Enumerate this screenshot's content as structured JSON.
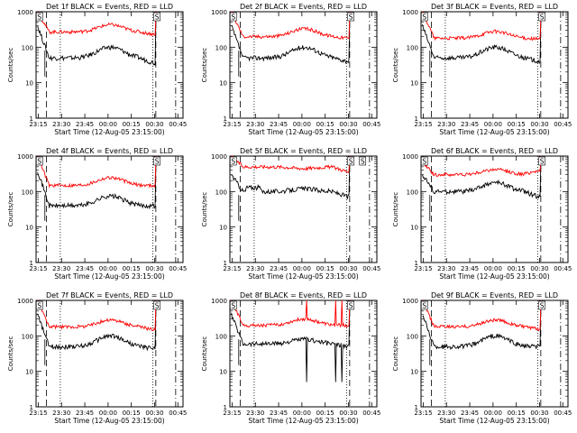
{
  "chart_data": [
    {
      "type": "line",
      "title": "Det 1f BLACK = Events, RED = LLD",
      "det": 1,
      "variant": "a",
      "xlabel": "Start Time (12-Aug-05 23:15:00)",
      "ylabel": "Counts/sec",
      "xticks": [
        "23:15",
        "23:30",
        "23:45",
        "00:00",
        "00:15",
        "00:30",
        "00:45"
      ],
      "yticks": [
        "1",
        "10",
        "100",
        "1000"
      ],
      "ylim": [
        1,
        1000
      ],
      "log_y": true,
      "series": [
        {
          "name": "Events",
          "color": "#000000",
          "level_start": 400,
          "level_mid": 50,
          "bump": 100,
          "level_end": 35
        },
        {
          "name": "LLD",
          "color": "#ff0000",
          "level_start": 1000,
          "level_mid": 270,
          "bump": 430,
          "level_end": 230
        }
      ],
      "flags": [
        "S",
        "S"
      ]
    },
    {
      "type": "line",
      "title": "Det 2f BLACK = Events, RED = LLD",
      "det": 2,
      "variant": "a",
      "xlabel": "Start Time (12-Aug-05 23:15:00)",
      "ylabel": "Counts/sec",
      "xticks": [
        "23:15",
        "23:30",
        "23:45",
        "00:00",
        "00:15",
        "00:30",
        "00:45"
      ],
      "yticks": [
        "1",
        "10",
        "100",
        "1000"
      ],
      "ylim": [
        1,
        1000
      ],
      "log_y": true,
      "series": [
        {
          "name": "Events",
          "color": "#000000",
          "level_start": 400,
          "level_mid": 50,
          "bump": 100,
          "level_end": 40
        },
        {
          "name": "LLD",
          "color": "#ff0000",
          "level_start": 1000,
          "level_mid": 200,
          "bump": 330,
          "level_end": 180
        }
      ],
      "flags": [
        "S",
        "S"
      ]
    },
    {
      "type": "line",
      "title": "Det 3f BLACK = Events, RED = LLD",
      "det": 3,
      "variant": "a",
      "xlabel": "Start Time (12-Aug-05 23:15:00)",
      "ylabel": "Counts/sec",
      "xticks": [
        "23:15",
        "23:30",
        "23:45",
        "00:00",
        "00:15",
        "00:30",
        "00:45"
      ],
      "yticks": [
        "1",
        "10",
        "100",
        "1000"
      ],
      "ylim": [
        1,
        1000
      ],
      "log_y": true,
      "series": [
        {
          "name": "Events",
          "color": "#000000",
          "level_start": 400,
          "level_mid": 50,
          "bump": 100,
          "level_end": 40
        },
        {
          "name": "LLD",
          "color": "#ff0000",
          "level_start": 1000,
          "level_mid": 180,
          "bump": 280,
          "level_end": 170
        }
      ],
      "flags": [
        "S",
        "S"
      ]
    },
    {
      "type": "line",
      "title": "Det 4f BLACK = Events, RED = LLD",
      "det": 4,
      "variant": "a",
      "xlabel": "Start Time (12-Aug-05 23:15:00)",
      "ylabel": "Counts/sec",
      "xticks": [
        "23:15",
        "23:30",
        "23:45",
        "00:00",
        "00:15",
        "00:30",
        "00:45"
      ],
      "yticks": [
        "1",
        "10",
        "100",
        "1000"
      ],
      "ylim": [
        1,
        1000
      ],
      "log_y": true,
      "series": [
        {
          "name": "Events",
          "color": "#000000",
          "level_start": 400,
          "level_mid": 40,
          "bump": 75,
          "level_end": 40
        },
        {
          "name": "LLD",
          "color": "#ff0000",
          "level_start": 1000,
          "level_mid": 150,
          "bump": 250,
          "level_end": 150
        }
      ],
      "flags": [
        "S",
        "S"
      ]
    },
    {
      "type": "line",
      "title": "Det 5f BLACK = Events, RED = LLD",
      "det": 5,
      "variant": "b",
      "xlabel": "Start Time (12-Aug-05 23:15:00)",
      "ylabel": "Counts/sec",
      "xticks": [
        "23:15",
        "23:30",
        "23:45",
        "00:00",
        "00:15",
        "00:30",
        "00:45"
      ],
      "yticks": [
        "1",
        "10",
        "100",
        "1000"
      ],
      "ylim": [
        1,
        1000
      ],
      "log_y": true,
      "series": [
        {
          "name": "Events",
          "color": "#000000",
          "level_start": 300,
          "level_mid": 100,
          "bump": 120,
          "level_end": 70
        },
        {
          "name": "LLD",
          "color": "#ff0000",
          "level_start": 1000,
          "level_mid": 500,
          "bump": 450,
          "level_end": 350
        }
      ],
      "flags": [
        "S",
        "S",
        "S"
      ]
    },
    {
      "type": "line",
      "title": "Det 6f BLACK = Events, RED = LLD",
      "det": 6,
      "variant": "c",
      "xlabel": "Start Time (12-Aug-05 23:15:00)",
      "ylabel": "Counts/sec",
      "xticks": [
        "23:15",
        "23:30",
        "23:45",
        "00:00",
        "00:15",
        "00:30",
        "00:45"
      ],
      "yticks": [
        "1",
        "10",
        "100",
        "1000"
      ],
      "ylim": [
        1,
        1000
      ],
      "log_y": true,
      "series": [
        {
          "name": "Events",
          "color": "#000000",
          "level_start": 300,
          "level_mid": 100,
          "bump": 180,
          "level_end": 70
        },
        {
          "name": "LLD",
          "color": "#ff0000",
          "level_start": 650,
          "level_mid": 300,
          "bump": 420,
          "level_end": 400
        }
      ],
      "flags": [
        "S",
        "S"
      ]
    },
    {
      "type": "line",
      "title": "Det 7f BLACK = Events, RED = LLD",
      "det": 7,
      "variant": "a",
      "xlabel": "Start Time (12-Aug-05 23:15:00)",
      "ylabel": "Counts/sec",
      "xticks": [
        "23:15",
        "23:30",
        "23:45",
        "00:00",
        "00:15",
        "00:30",
        "00:45"
      ],
      "yticks": [
        "1",
        "10",
        "100",
        "1000"
      ],
      "ylim": [
        1,
        1000
      ],
      "log_y": true,
      "series": [
        {
          "name": "Events",
          "color": "#000000",
          "level_start": 400,
          "level_mid": 50,
          "bump": 100,
          "level_end": 45
        },
        {
          "name": "LLD",
          "color": "#ff0000",
          "level_start": 1000,
          "level_mid": 180,
          "bump": 280,
          "level_end": 150
        }
      ],
      "flags": [
        "S",
        "S"
      ]
    },
    {
      "type": "line",
      "title": "Det 8f BLACK = Events, RED = LLD",
      "det": 8,
      "variant": "d",
      "xlabel": "Start Time (12-Aug-05 23:15:00)",
      "ylabel": "Counts/sec",
      "xticks": [
        "23:15",
        "23:30",
        "23:45",
        "00:00",
        "00:15",
        "00:30",
        "00:45"
      ],
      "yticks": [
        "1",
        "10",
        "100",
        "1000"
      ],
      "ylim": [
        1,
        1000
      ],
      "log_y": true,
      "series": [
        {
          "name": "Events",
          "color": "#000000",
          "level_start": 400,
          "level_mid": 60,
          "bump": 80,
          "level_end": 50
        },
        {
          "name": "LLD",
          "color": "#ff0000",
          "level_start": 1000,
          "level_mid": 200,
          "bump": 300,
          "level_end": 200
        }
      ],
      "flags": [
        "S",
        "S"
      ]
    },
    {
      "type": "line",
      "title": "Det 9f BLACK = Events, RED = LLD",
      "det": 9,
      "variant": "a",
      "xlabel": "Start Time (12-Aug-05 23:15:00)",
      "ylabel": "Counts/sec",
      "xticks": [
        "23:15",
        "23:30",
        "23:45",
        "00:00",
        "00:15",
        "00:30",
        "00:45"
      ],
      "yticks": [
        "1",
        "10",
        "100",
        "1000"
      ],
      "ylim": [
        1,
        1000
      ],
      "log_y": true,
      "series": [
        {
          "name": "Events",
          "color": "#000000",
          "level_start": 400,
          "level_mid": 50,
          "bump": 100,
          "level_end": 50
        },
        {
          "name": "LLD",
          "color": "#ff0000",
          "level_start": 1000,
          "level_mid": 180,
          "bump": 280,
          "level_end": 150
        }
      ],
      "flags": [
        "S",
        "S"
      ]
    }
  ]
}
